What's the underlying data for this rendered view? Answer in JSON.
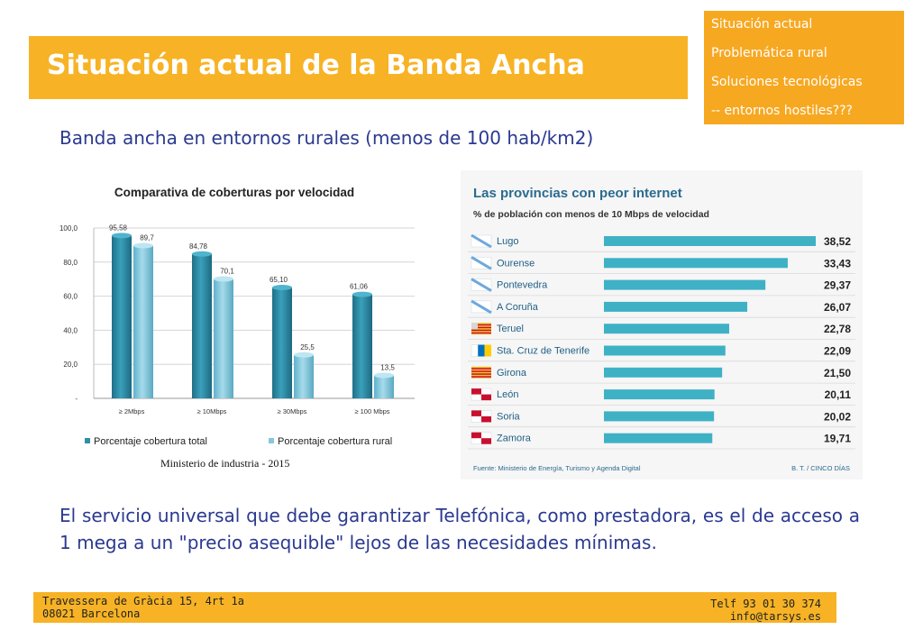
{
  "header": {
    "title": "Situación actual de la Banda Ancha"
  },
  "nav": {
    "items": [
      "Situación actual",
      "Problemática rural",
      "Soluciones tecnológicas",
      "-- entornos hostiles???"
    ]
  },
  "subtitle": "Banda ancha en entornos rurales (menos de 100 hab/km2)",
  "left_source": "Ministerio de industria  - 2015",
  "body_text": "El servicio universal que debe garantizar Telefónica, como prestadora, es el de acceso a 1 mega a un \"precio asequible\" lejos de las necesidades mínimas.",
  "footer": {
    "left_line1": "Travessera de Gràcia 15, 4rt 1a",
    "left_line2": "08021 Barcelona",
    "right_line1": "Telf 93 01 30 374",
    "right_line2": "info@tarsys.es"
  },
  "colors": {
    "accent": "#f7b325",
    "text_blue": "#2b3990",
    "bar_total": "#2d8fa8",
    "bar_rural": "#86c7dc",
    "bar_province": "#3fb1c5"
  },
  "chart_data": [
    {
      "type": "bar",
      "title": "Comparativa de coberturas por velocidad",
      "categories": [
        "≥ 2Mbps",
        "≥ 10Mbps",
        "≥ 30Mbps",
        "≥ 100 Mbps"
      ],
      "series": [
        {
          "name": "Porcentaje cobertura total",
          "values": [
            95.58,
            84.78,
            65.1,
            61.06
          ],
          "labels": [
            "95,58",
            "84,78",
            "65,10",
            "61,06"
          ]
        },
        {
          "name": "Porcentaje cobertura rural",
          "values": [
            89.7,
            70.1,
            25.5,
            13.5
          ],
          "labels": [
            "89,7",
            "70,1",
            "25,5",
            "13,5"
          ]
        }
      ],
      "yticks": [
        "100,0",
        "80,0",
        "60,0",
        "40,0",
        "20,0",
        "-"
      ],
      "ylim": [
        0,
        100
      ],
      "grid": true,
      "legend": "bottom"
    },
    {
      "type": "bar",
      "orientation": "horizontal",
      "title": "Las provincias con peor internet",
      "subtitle": "% de población con menos de 10 Mbps de velocidad",
      "categories": [
        "Lugo",
        "Ourense",
        "Pontevedra",
        "A Coruña",
        "Teruel",
        "Sta. Cruz de Tenerife",
        "Girona",
        "León",
        "Soria",
        "Zamora"
      ],
      "values": [
        38.52,
        33.43,
        29.37,
        26.07,
        22.78,
        22.09,
        21.5,
        20.11,
        20.02,
        19.71
      ],
      "labels": [
        "38,52",
        "33,43",
        "29,37",
        "26,07",
        "22,78",
        "22,09",
        "21,50",
        "20,11",
        "20,02",
        "19,71"
      ],
      "flags": [
        "galicia",
        "galicia",
        "galicia",
        "galicia",
        "aragon",
        "canarias",
        "cataluna",
        "castilla-leon",
        "castilla-leon",
        "castilla-leon"
      ],
      "source": "Fuente: Ministerio de Energía, Turismo y Agenda Digital",
      "credit": "B. T. / CINCO DÍAS"
    }
  ]
}
